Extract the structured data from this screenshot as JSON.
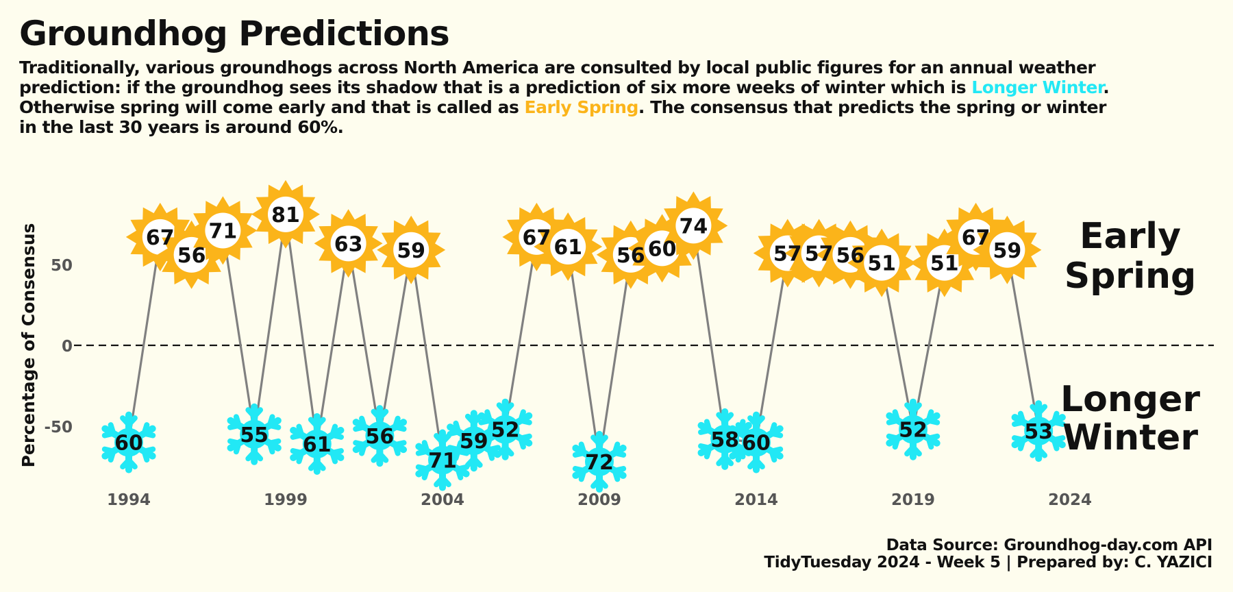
{
  "title": "Groundhog Predictions",
  "subtitle": {
    "part1": "Traditionally, various groundhogs across North America are consulted by local public figures for an annual weather prediction: if the groundhog sees its shadow that is a prediction of six more weeks of winter which is ",
    "winter_keyword": "Longer Winter",
    "part2": ". Otherwise spring will come early and that is called as ",
    "spring_keyword": "Early Spring",
    "part3": ". The consensus that predicts the spring or winter in the last 30 years is around 60%."
  },
  "caption": {
    "line1": "Data Source: Groundhog-day.com API",
    "line2": "TidyTuesday 2024 - Week 5 | Prepared by: C. YAZICI"
  },
  "colors": {
    "background": "#fefdee",
    "spring": "#fbb41a",
    "winter": "#22e8f5",
    "line": "#808080",
    "text": "#111111"
  },
  "chart_data": {
    "type": "line",
    "ylabel": "Percentage of Consensus",
    "xlabel": "",
    "x_ticks": [
      1994,
      1999,
      2004,
      2009,
      2014,
      2019,
      2024
    ],
    "y_ticks": [
      -50,
      0,
      50
    ],
    "xlim": [
      1993,
      2028
    ],
    "ylim": [
      -90,
      95
    ],
    "zero_line": "dashed",
    "grid": false,
    "region_labels": [
      {
        "text_line1": "Early",
        "text_line2": "Spring",
        "side": "positive"
      },
      {
        "text_line1": "Longer",
        "text_line2": "Winter",
        "side": "negative"
      }
    ],
    "points": [
      {
        "year": 1994,
        "pct": 60,
        "prediction": "Longer Winter"
      },
      {
        "year": 1995,
        "pct": 67,
        "prediction": "Early Spring"
      },
      {
        "year": 1996,
        "pct": 56,
        "prediction": "Early Spring"
      },
      {
        "year": 1997,
        "pct": 71,
        "prediction": "Early Spring"
      },
      {
        "year": 1998,
        "pct": 55,
        "prediction": "Longer Winter"
      },
      {
        "year": 1999,
        "pct": 81,
        "prediction": "Early Spring"
      },
      {
        "year": 2000,
        "pct": 61,
        "prediction": "Longer Winter"
      },
      {
        "year": 2001,
        "pct": 63,
        "prediction": "Early Spring"
      },
      {
        "year": 2002,
        "pct": 56,
        "prediction": "Longer Winter"
      },
      {
        "year": 2003,
        "pct": 59,
        "prediction": "Early Spring"
      },
      {
        "year": 2004,
        "pct": 71,
        "prediction": "Longer Winter"
      },
      {
        "year": 2005,
        "pct": 59,
        "prediction": "Longer Winter"
      },
      {
        "year": 2006,
        "pct": 52,
        "prediction": "Longer Winter"
      },
      {
        "year": 2007,
        "pct": 67,
        "prediction": "Early Spring"
      },
      {
        "year": 2008,
        "pct": 61,
        "prediction": "Early Spring"
      },
      {
        "year": 2009,
        "pct": 72,
        "prediction": "Longer Winter"
      },
      {
        "year": 2010,
        "pct": 56,
        "prediction": "Early Spring"
      },
      {
        "year": 2011,
        "pct": 60,
        "prediction": "Early Spring"
      },
      {
        "year": 2012,
        "pct": 74,
        "prediction": "Early Spring"
      },
      {
        "year": 2013,
        "pct": 58,
        "prediction": "Longer Winter"
      },
      {
        "year": 2014,
        "pct": 60,
        "prediction": "Longer Winter"
      },
      {
        "year": 2015,
        "pct": 57,
        "prediction": "Early Spring"
      },
      {
        "year": 2016,
        "pct": 57,
        "prediction": "Early Spring"
      },
      {
        "year": 2017,
        "pct": 56,
        "prediction": "Early Spring"
      },
      {
        "year": 2018,
        "pct": 51,
        "prediction": "Early Spring"
      },
      {
        "year": 2019,
        "pct": 52,
        "prediction": "Longer Winter"
      },
      {
        "year": 2020,
        "pct": 51,
        "prediction": "Early Spring"
      },
      {
        "year": 2021,
        "pct": 67,
        "prediction": "Early Spring"
      },
      {
        "year": 2022,
        "pct": 59,
        "prediction": "Early Spring"
      },
      {
        "year": 2023,
        "pct": 53,
        "prediction": "Longer Winter"
      }
    ]
  }
}
